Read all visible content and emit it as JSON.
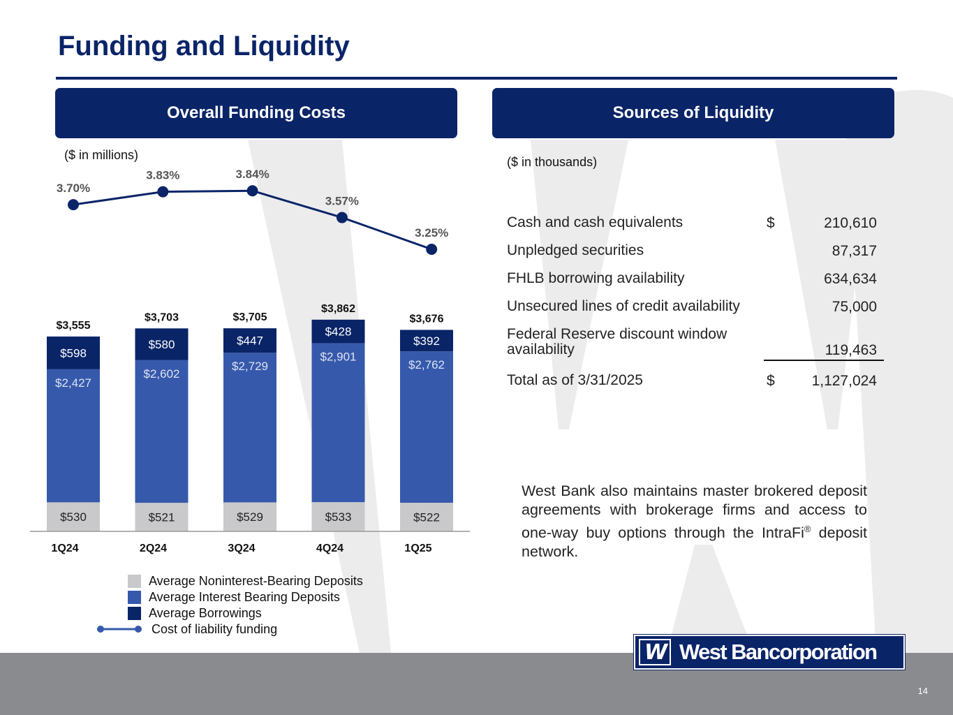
{
  "title": "Funding and Liquidity",
  "left_panel": {
    "header": "Overall Funding Costs",
    "unit_note": "($ in millions)"
  },
  "right_panel": {
    "header": "Sources of Liquidity",
    "unit_note": "($ in thousands)"
  },
  "chart_data": {
    "type": "bar",
    "stacked": true,
    "categories": [
      "1Q24",
      "2Q24",
      "3Q24",
      "4Q24",
      "1Q25"
    ],
    "series": [
      {
        "name": "Average Noninterest-Bearing Deposits",
        "color": "#c9c9cb",
        "values": [
          530,
          521,
          529,
          533,
          522
        ],
        "labels": [
          "$530",
          "$521",
          "$529",
          "$533",
          "$522"
        ]
      },
      {
        "name": "Average Interest Bearing Deposits",
        "color": "#3659ac",
        "values": [
          2427,
          2602,
          2729,
          2901,
          2762
        ],
        "labels": [
          "$2,427",
          "$2,602",
          "$2,729",
          "$2,901",
          "$2,762"
        ]
      },
      {
        "name": "Average Borrowings",
        "color": "#0a2468",
        "values": [
          598,
          580,
          447,
          428,
          392
        ],
        "labels": [
          "$598",
          "$580",
          "$447",
          "$428",
          "$392"
        ]
      }
    ],
    "totals": [
      3555,
      3703,
      3705,
      3862,
      3676
    ],
    "total_labels": [
      "$3,555",
      "$3,703",
      "$3,705",
      "$3,862",
      "$3,676"
    ],
    "line_series": {
      "name": "Cost of liability funding",
      "color": "#0a2468",
      "values": [
        3.7,
        3.83,
        3.84,
        3.57,
        3.25
      ],
      "labels": [
        "3.70%",
        "3.83%",
        "3.84%",
        "3.57%",
        "3.25%"
      ]
    },
    "grid": false,
    "legend_position": "bottom"
  },
  "liquidity": {
    "rows": [
      {
        "label": "Cash and cash equivalents",
        "dollar": "$",
        "value": "210,610"
      },
      {
        "label": "Unpledged securities",
        "dollar": "",
        "value": "87,317"
      },
      {
        "label": "FHLB borrowing availability",
        "dollar": "",
        "value": "634,634"
      },
      {
        "label": "Unsecured lines of credit availability",
        "dollar": "",
        "value": "75,000"
      },
      {
        "label": "Federal Reserve discount window availability",
        "dollar": "",
        "value": "119,463"
      }
    ],
    "total": {
      "label": "Total as of 3/31/2025",
      "dollar": "$",
      "value": "1,127,024"
    }
  },
  "note": {
    "text_before": "West Bank also maintains master brokered deposit agreements with brokerage firms and access to one-way buy options through the IntraFi",
    "superscript": "®",
    "text_after": " deposit network."
  },
  "logo": {
    "mark": "W",
    "text": "West Bancorporation"
  },
  "page_number": "14"
}
